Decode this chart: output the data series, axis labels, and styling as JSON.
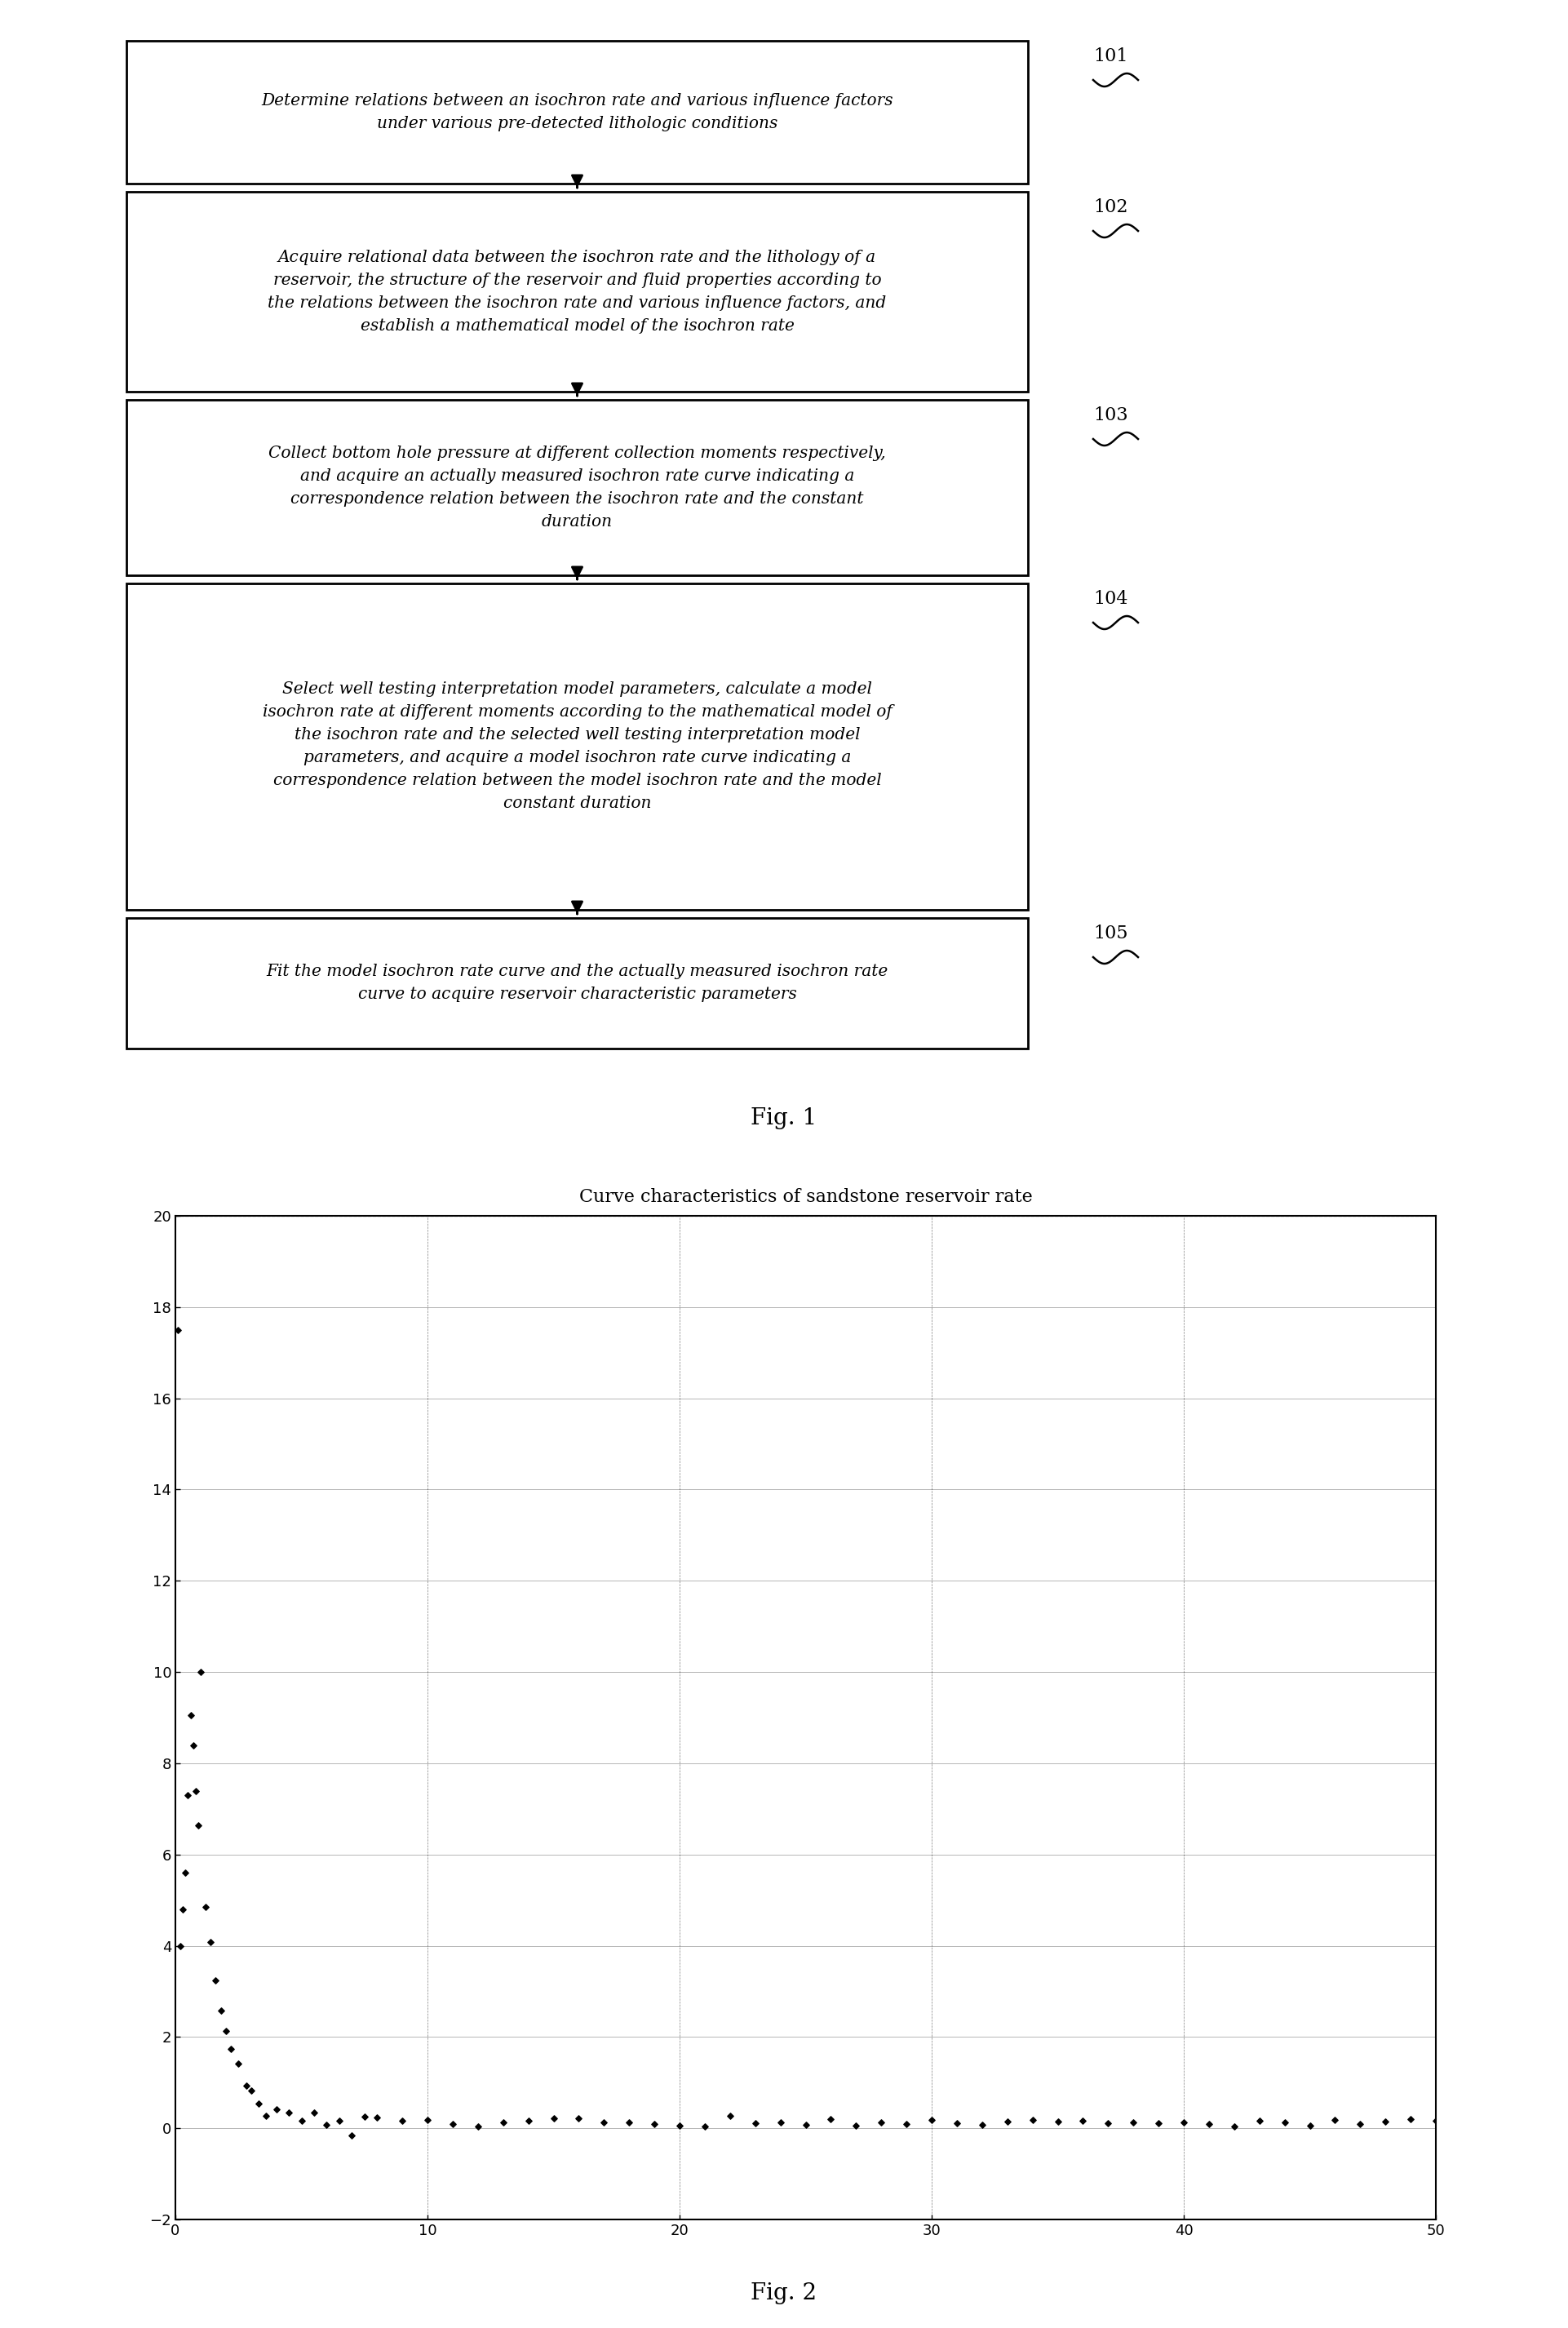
{
  "flowchart_boxes": [
    {
      "id": 101,
      "text": "Determine relations between an isochron rate and various influence factors\nunder various pre-detected lithologic conditions",
      "nlines": 2
    },
    {
      "id": 102,
      "text": "Acquire relational data between the isochron rate and the lithology of a\nreservoir, the structure of the reservoir and fluid properties according to\nthe relations between the isochron rate and various influence factors, and\nestablish a mathematical model of the isochron rate",
      "nlines": 4
    },
    {
      "id": 103,
      "text": "Collect bottom hole pressure at different collection moments respectively,\nand acquire an actually measured isochron rate curve indicating a\ncorrespondence relation between the isochron rate and the constant\nduration",
      "nlines": 4
    },
    {
      "id": 104,
      "text": "Select well testing interpretation model parameters, calculate a model\nisochron rate at different moments according to the mathematical model of\nthe isochron rate and the selected well testing interpretation model\nparameters, and acquire a model isochron rate curve indicating a\ncorrespondence relation between the model isochron rate and the model\nconstant duration",
      "nlines": 6
    },
    {
      "id": 105,
      "text": "Fit the model isochron rate curve and the actually measured isochron rate\ncurve to acquire reservoir characteristic parameters",
      "nlines": 2
    }
  ],
  "fig1_label": "Fig. 1",
  "fig2_label": "Fig. 2",
  "chart_title": "Curve characteristics of sandstone reservoir rate",
  "chart_xlim": [
    0,
    50
  ],
  "chart_ylim": [
    -2,
    20
  ],
  "chart_xticks": [
    0,
    10,
    20,
    30,
    40,
    50
  ],
  "chart_yticks": [
    -2,
    0,
    2,
    4,
    6,
    8,
    10,
    12,
    14,
    16,
    18,
    20
  ],
  "background_color": "#ffffff",
  "box_edge_color": "#000000",
  "arrow_color": "#000000",
  "text_color": "#000000",
  "scatter_x": [
    0.1,
    0.2,
    0.3,
    0.4,
    0.5,
    0.6,
    0.7,
    0.8,
    0.9,
    1.0,
    1.2,
    1.4,
    1.6,
    1.8,
    2.0,
    2.2,
    2.5,
    2.8,
    3.0,
    3.3,
    3.6,
    4.0,
    4.5,
    5.0,
    5.5,
    6.0,
    6.5,
    7.0,
    7.5,
    8.0,
    9.0,
    10.0,
    11.0,
    12.0,
    13.0,
    14.0,
    15.0,
    16.0,
    17.0,
    18.0,
    19.0,
    20.0,
    21.0,
    22.0,
    23.0,
    24.0,
    25.0,
    26.0,
    27.0,
    28.0,
    29.0,
    30.0,
    31.0,
    32.0,
    33.0,
    34.0,
    35.0,
    36.0,
    37.0,
    38.0,
    39.0,
    40.0,
    41.0,
    42.0,
    43.0,
    44.0,
    45.0,
    46.0,
    47.0,
    48.0,
    49.0,
    50.0
  ]
}
